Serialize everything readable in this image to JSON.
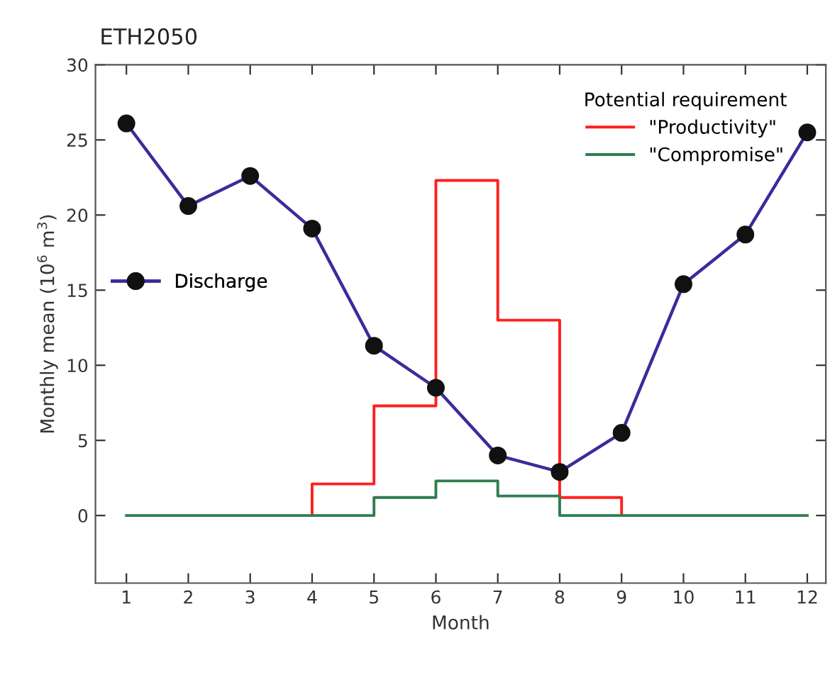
{
  "chart_data": {
    "type": "line",
    "title": "ETH2050",
    "xlabel": "Month",
    "ylabel": "Monthly mean (10$^{6}$ m$^{3}$)",
    "x": [
      1,
      2,
      3,
      4,
      5,
      6,
      7,
      8,
      9,
      10,
      11,
      12
    ],
    "xlim": [
      0.5,
      12.3
    ],
    "xticks": [
      1,
      2,
      3,
      4,
      5,
      6,
      7,
      8,
      9,
      10,
      11,
      12
    ],
    "ylim": [
      -4.5,
      30
    ],
    "yticks": [
      0,
      5,
      10,
      15,
      20,
      25,
      30
    ],
    "grid": false,
    "legend": "top right",
    "legend_title": "Potential requirement",
    "series": [
      {
        "name": "Discharge",
        "marker": "circle",
        "color": "#3b2b9a",
        "values": [
          26.1,
          20.6,
          22.6,
          19.1,
          11.3,
          8.5,
          4.0,
          2.9,
          5.5,
          15.4,
          18.7,
          25.5
        ]
      },
      {
        "name": "\"Productivity\"",
        "type": "step",
        "color": "#ff2020",
        "x": [
          4,
          4,
          5,
          6,
          7,
          8,
          9
        ],
        "values": [
          0,
          2.1,
          7.3,
          22.3,
          13.0,
          1.2,
          0
        ]
      },
      {
        "name": "\"Compromise\"",
        "type": "step",
        "color": "#2e7d4f",
        "values": [
          0,
          0,
          0,
          0,
          1.2,
          2.3,
          1.3,
          0,
          0,
          0,
          0,
          0
        ]
      }
    ]
  }
}
